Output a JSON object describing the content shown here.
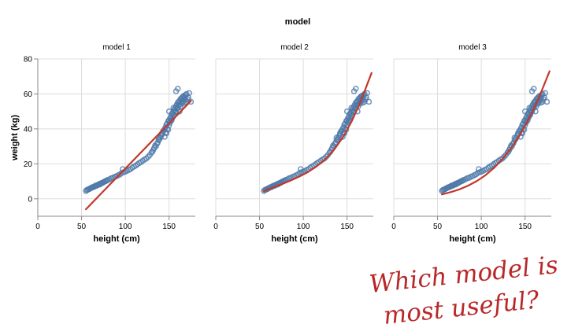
{
  "figure": {
    "facet_title": "model",
    "annotation": "Which model is most useful?",
    "annotation_lines": [
      "Which model is",
      "most useful?"
    ]
  },
  "colors": {
    "points": "#4c78a8",
    "fit_line": "#c0392b",
    "grid": "#dddddd",
    "axis": "#888888",
    "annotation": "#b8282a"
  },
  "chart_data": [
    {
      "type": "scatter",
      "title": "model 1",
      "xlabel": "height (cm)",
      "ylabel": "weight (kg)",
      "xlim": [
        0,
        180
      ],
      "ylim": [
        -10,
        80
      ],
      "xticks": [
        0,
        50,
        100,
        150
      ],
      "yticks": [
        0,
        20,
        40,
        60,
        80
      ],
      "grid": true,
      "points_ref": "observations",
      "fit": {
        "kind": "linear",
        "x": [
          55,
          175
        ],
        "y": [
          -6,
          56
        ]
      }
    },
    {
      "type": "scatter",
      "title": "model 2",
      "xlabel": "height (cm)",
      "ylabel": "",
      "xlim": [
        0,
        180
      ],
      "ylim": [
        -10,
        80
      ],
      "xticks": [
        0,
        50,
        100,
        150
      ],
      "yticks": [
        0,
        20,
        40,
        60,
        80
      ],
      "grid": true,
      "points_ref": "observations",
      "fit": {
        "kind": "curve",
        "x": [
          55,
          65,
          75,
          85,
          95,
          105,
          115,
          125,
          135,
          145,
          155,
          165,
          178
        ],
        "y": [
          4.5,
          6.4,
          8.3,
          10.3,
          12.6,
          15.2,
          18.5,
          22.6,
          28.0,
          35.0,
          44.0,
          55.0,
          72.0
        ]
      }
    },
    {
      "type": "scatter",
      "title": "model 3",
      "xlabel": "height (cm)",
      "ylabel": "",
      "xlim": [
        0,
        180
      ],
      "ylim": [
        -10,
        80
      ],
      "xticks": [
        0,
        50,
        100,
        150
      ],
      "yticks": [
        0,
        20,
        40,
        60,
        80
      ],
      "grid": true,
      "points_ref": "observations",
      "fit": {
        "kind": "curve",
        "x": [
          55,
          65,
          75,
          85,
          95,
          105,
          115,
          125,
          135,
          145,
          155,
          165,
          178
        ],
        "y": [
          2.5,
          3.8,
          5.4,
          7.5,
          10.2,
          13.6,
          17.9,
          23.2,
          29.6,
          37.2,
          46.3,
          56.8,
          73.0
        ]
      }
    }
  ],
  "observations": {
    "x": [
      55,
      56,
      57,
      58,
      59,
      60,
      61,
      62,
      63,
      64,
      65,
      66,
      67,
      68,
      69,
      70,
      71,
      72,
      73,
      74,
      75,
      76,
      77,
      78,
      79,
      80,
      82,
      84,
      86,
      88,
      90,
      92,
      94,
      96,
      98,
      100,
      102,
      104,
      106,
      108,
      110,
      112,
      114,
      116,
      118,
      120,
      122,
      124,
      126,
      128,
      130,
      131,
      132,
      133,
      134,
      135,
      136,
      137,
      138,
      139,
      140,
      141,
      142,
      143,
      144,
      145,
      145,
      146,
      146,
      147,
      147,
      148,
      148,
      149,
      149,
      150,
      150,
      151,
      151,
      152,
      152,
      153,
      153,
      154,
      154,
      155,
      155,
      156,
      156,
      157,
      157,
      158,
      158,
      159,
      159,
      160,
      160,
      161,
      161,
      162,
      162,
      163,
      163,
      164,
      164,
      165,
      165,
      166,
      166,
      167,
      167,
      168,
      168,
      169,
      169,
      170,
      170,
      171,
      172,
      173,
      175,
      160,
      158,
      162,
      155,
      150,
      142,
      138,
      97
    ],
    "y": [
      4.5,
      5.0,
      5.2,
      5.4,
      5.6,
      6.0,
      6.2,
      6.5,
      6.7,
      6.8,
      7.2,
      7.5,
      7.4,
      7.8,
      8.0,
      8.4,
      8.2,
      8.8,
      9.0,
      9.1,
      9.5,
      9.8,
      10.0,
      10.2,
      10.5,
      10.8,
      11.2,
      11.8,
      12.0,
      12.6,
      13.0,
      13.5,
      14.0,
      14.8,
      15.2,
      15.5,
      16.0,
      16.5,
      17.0,
      17.8,
      18.5,
      19.0,
      19.8,
      20.5,
      21.0,
      21.8,
      22.5,
      23.0,
      24.0,
      25.0,
      26.5,
      27.0,
      28.0,
      29.0,
      30.5,
      30.0,
      31.5,
      32.0,
      33.5,
      34.0,
      35.0,
      36.0,
      37.0,
      38.5,
      39.0,
      40.0,
      35.5,
      41.0,
      38.0,
      42.5,
      37.5,
      43.0,
      40.0,
      44.5,
      39.5,
      45.0,
      42.0,
      46.0,
      43.5,
      47.0,
      44.5,
      48.5,
      45.0,
      49.0,
      46.5,
      50.0,
      47.5,
      51.0,
      48.0,
      52.0,
      49.5,
      53.0,
      50.0,
      54.0,
      51.5,
      55.0,
      52.0,
      55.5,
      53.5,
      56.0,
      54.0,
      57.0,
      53.0,
      57.5,
      55.0,
      58.0,
      54.5,
      58.5,
      56.0,
      57.0,
      59.0,
      58.0,
      55.0,
      59.5,
      56.5,
      60.0,
      55.5,
      57.0,
      58.0,
      60.5,
      55.5,
      63.0,
      61.5,
      50.0,
      52.0,
      50.0,
      37.5,
      35.0,
      17.0
    ]
  }
}
